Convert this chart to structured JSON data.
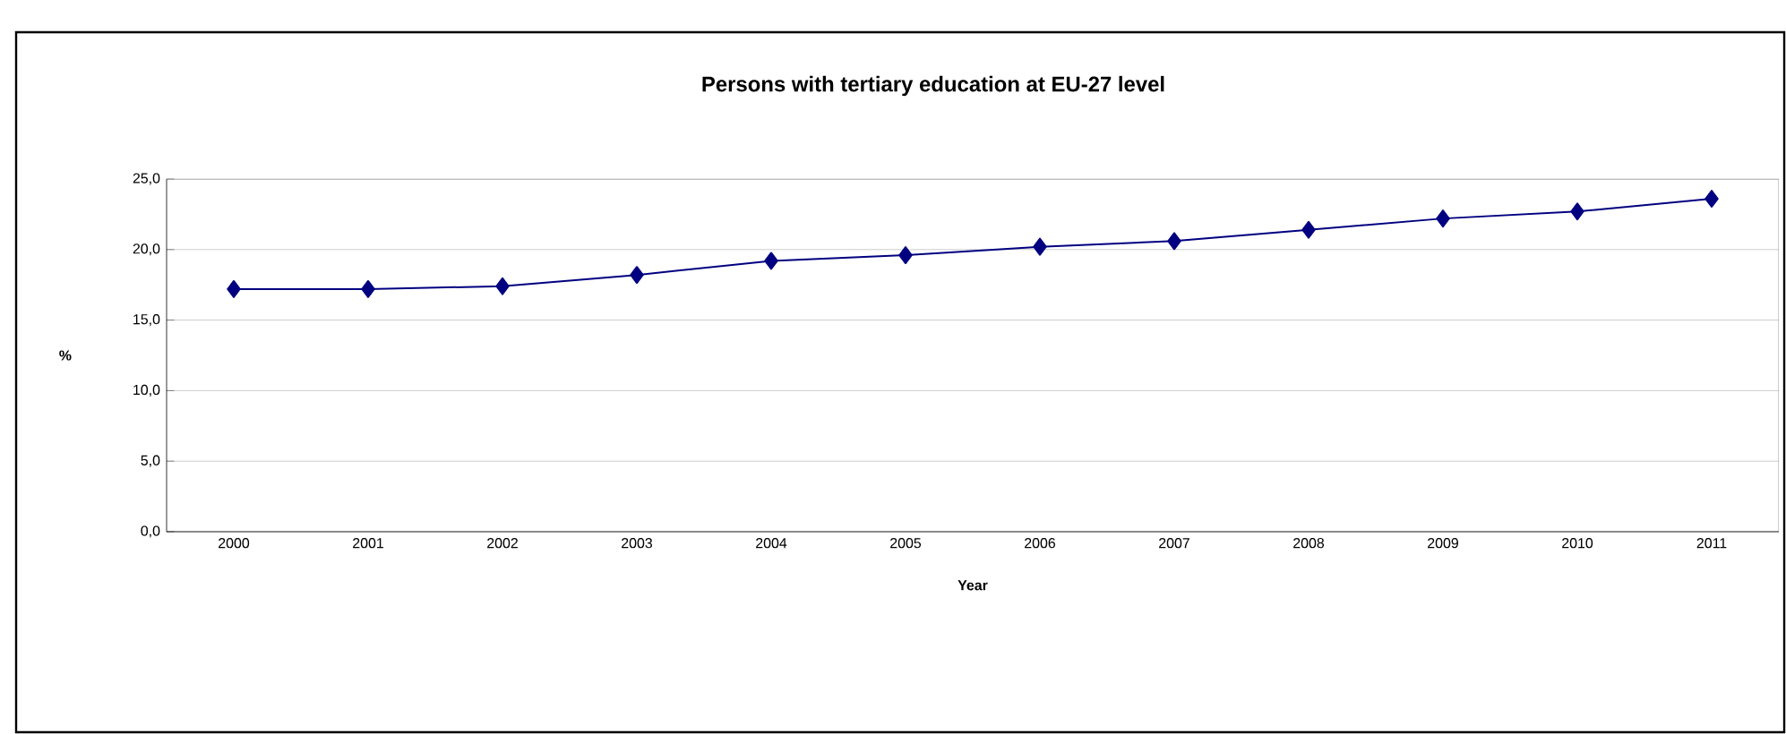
{
  "chart_data": {
    "type": "line",
    "title": "Persons with tertiary education at EU-27 level",
    "xlabel": "Year",
    "ylabel": "%",
    "categories": [
      "2000",
      "2001",
      "2002",
      "2003",
      "2004",
      "2005",
      "2006",
      "2007",
      "2008",
      "2009",
      "2010",
      "2011"
    ],
    "series": [
      {
        "color": "#000080",
        "values": [
          17.2,
          17.2,
          17.4,
          18.2,
          19.2,
          19.6,
          20.2,
          20.6,
          21.4,
          22.2,
          22.7,
          23.6
        ]
      }
    ],
    "ylim": [
      0,
      25
    ],
    "yticks": [
      {
        "value": 0,
        "label": "0,0"
      },
      {
        "value": 5,
        "label": "5,0"
      },
      {
        "value": 10,
        "label": "10,0"
      },
      {
        "value": 15,
        "label": "15,0"
      },
      {
        "value": 20,
        "label": "20,0"
      },
      {
        "value": 25,
        "label": "25,0"
      }
    ],
    "grid": "y",
    "marker": "diamond",
    "line_style": "solid"
  }
}
